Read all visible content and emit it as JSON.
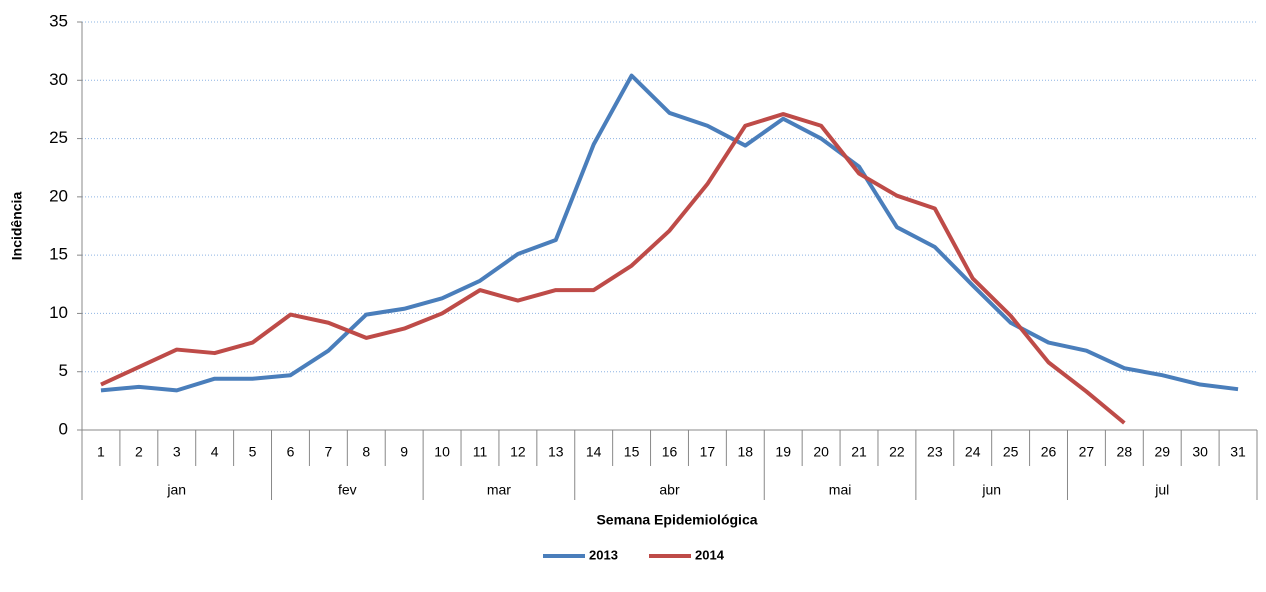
{
  "chart_data": {
    "type": "line",
    "x_label": "Semana Epidemiológica",
    "y_label": "Incidência",
    "categories": [
      "1",
      "2",
      "3",
      "4",
      "5",
      "6",
      "7",
      "8",
      "9",
      "10",
      "11",
      "12",
      "13",
      "14",
      "15",
      "16",
      "17",
      "18",
      "19",
      "20",
      "21",
      "22",
      "23",
      "24",
      "25",
      "26",
      "27",
      "28",
      "29",
      "30",
      "31"
    ],
    "months": [
      "jan",
      "jan",
      "jan",
      "jan",
      "jan",
      "fev",
      "fev",
      "fev",
      "fev",
      "mar",
      "mar",
      "mar",
      "mar",
      "abr",
      "abr",
      "abr",
      "abr",
      "abr",
      "mai",
      "mai",
      "mai",
      "mai",
      "jun",
      "jun",
      "jun",
      "jun",
      "jul",
      "jul",
      "jul",
      "jul",
      "jul"
    ],
    "series": [
      {
        "name": "2013",
        "color": "#4a7ebb",
        "values": [
          3.4,
          3.7,
          3.4,
          4.4,
          4.4,
          4.7,
          6.8,
          9.9,
          10.4,
          11.3,
          12.8,
          15.1,
          16.3,
          24.5,
          30.4,
          27.2,
          26.1,
          24.4,
          26.7,
          25.0,
          22.6,
          17.4,
          15.7,
          12.4,
          9.2,
          7.5,
          6.8,
          5.3,
          4.7,
          3.9,
          3.5
        ]
      },
      {
        "name": "2014",
        "color": "#be4b48",
        "values": [
          3.9,
          5.4,
          6.9,
          6.6,
          7.5,
          9.9,
          9.2,
          7.9,
          8.7,
          10.0,
          12.0,
          11.1,
          12.0,
          12.0,
          14.1,
          17.1,
          21.1,
          26.1,
          27.1,
          26.1,
          22.0,
          20.1,
          19.0,
          13.0,
          9.8,
          5.8,
          3.3,
          0.6,
          null,
          null,
          null
        ]
      }
    ],
    "ylim": [
      0,
      35
    ],
    "yticks": [
      0,
      5,
      10,
      15,
      20,
      25,
      30,
      35
    ],
    "grid": true,
    "legend": "bottom"
  }
}
